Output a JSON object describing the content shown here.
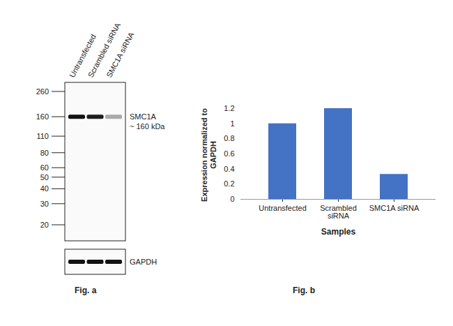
{
  "figure_a": {
    "caption": "Fig. a",
    "lanes": [
      "Untransfected",
      "Scrambled siRNA",
      "SMC1A siRNA"
    ],
    "markers": [
      260,
      160,
      110,
      80,
      60,
      50,
      40,
      30,
      20
    ],
    "bands": [
      {
        "label": "SMC1A",
        "sublabel": "~ 160 kDa",
        "kDa": 160,
        "intensity": [
          1,
          0.95,
          0.35
        ]
      },
      {
        "label": "GAPDH",
        "intensity": [
          1,
          1,
          1
        ]
      }
    ]
  },
  "chart_data": {
    "type": "bar",
    "caption": "Fig. b",
    "categories": [
      "Untransfected",
      "Scrambled\nsiRNA",
      "SMC1A siRNA"
    ],
    "values": [
      1,
      1.2,
      0.33
    ],
    "color": "#4472c4",
    "xlabel": "Samples",
    "ylabel": "Expression  normalized to\nGAPDH",
    "ylim": [
      0,
      1.2
    ],
    "yticks": [
      0,
      0.2,
      0.4,
      0.6,
      0.8,
      1,
      1.2
    ],
    "grid": false
  }
}
